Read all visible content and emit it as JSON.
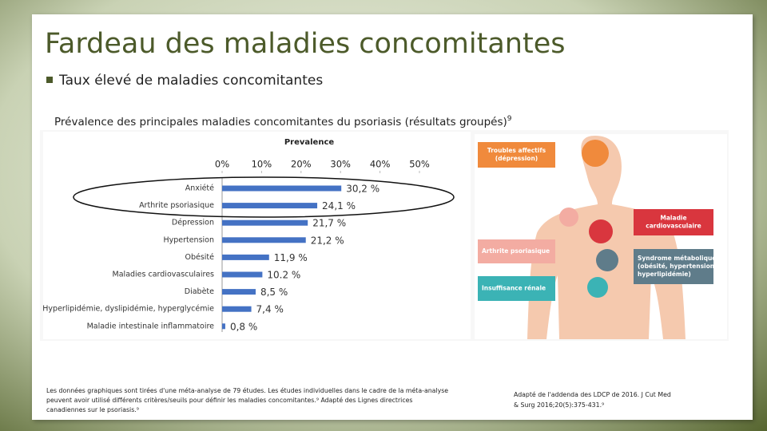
{
  "title": "Fardeau des maladies concomitantes",
  "bullet": "Taux élevé de maladies concomitantes",
  "caption": {
    "text": "Prévalence des principales maladies concomitantes du psoriasis (résultats groupés)",
    "superscript": "9"
  },
  "chart_data": {
    "type": "bar",
    "orientation": "horizontal",
    "title": "Prevalence",
    "categories": [
      "Anxiété",
      "Arthrite psoriasique",
      "Dépression",
      "Hypertension",
      "Obésité",
      "Maladies cardiovasculaires",
      "Diabète",
      "Hyperlipidémie, dyslipidémie, hyperglycémie",
      "Maladie intestinale inflammatoire"
    ],
    "values": [
      30.2,
      24.1,
      21.7,
      21.2,
      11.9,
      10.2,
      8.5,
      7.4,
      0.8
    ],
    "value_labels": [
      "30,2 %",
      "24,1 %",
      "21,7 %",
      "21,2 %",
      "11,9 %",
      "10.2 %",
      "8,5 %",
      "7,4 %",
      "0,8 %"
    ],
    "color": "#4472c4",
    "xlim": [
      0,
      50
    ],
    "xticks": [
      {
        "value": 0,
        "label": "0%"
      },
      {
        "value": 10,
        "label": "10%"
      },
      {
        "value": 20,
        "label": "20%"
      },
      {
        "value": 30,
        "label": "30%"
      },
      {
        "value": 40,
        "label": "40%"
      },
      {
        "value": 50,
        "label": "50%"
      }
    ],
    "grid": false
  },
  "illustration": {
    "labels": [
      {
        "text": [
          "Troubles affectifs",
          "(dépression)"
        ],
        "color": "#f08a3c"
      },
      {
        "text": [
          "Maladie",
          "cardiovasculaire"
        ],
        "color": "#d9363e"
      },
      {
        "text": [
          "Arthrite psoriasique"
        ],
        "color": "#f3aca2"
      },
      {
        "text": [
          "Syndrome métabolique",
          "(obésité, hypertension,",
          "hyperlipidémie)"
        ],
        "color": "#5f7c8a"
      },
      {
        "text": [
          "Insuffisance rénale"
        ],
        "color": "#3bb3b5"
      }
    ]
  },
  "footnote_left": [
    "Les données graphiques sont tirées d'une méta-analyse de 79 études. Les études individuelles dans le cadre de la méta-analyse",
    "peuvent avoir utilisé différents critères/seuils pour définir les maladies concomitantes.⁹ Adapté des Lignes directrices",
    "canadiennes sur le psoriasis.⁹"
  ],
  "footnote_right": [
    "Adapté de l'addenda des LDCP de 2016. J Cut Med",
    "& Surg 2016;20(5):375-431.⁹"
  ]
}
